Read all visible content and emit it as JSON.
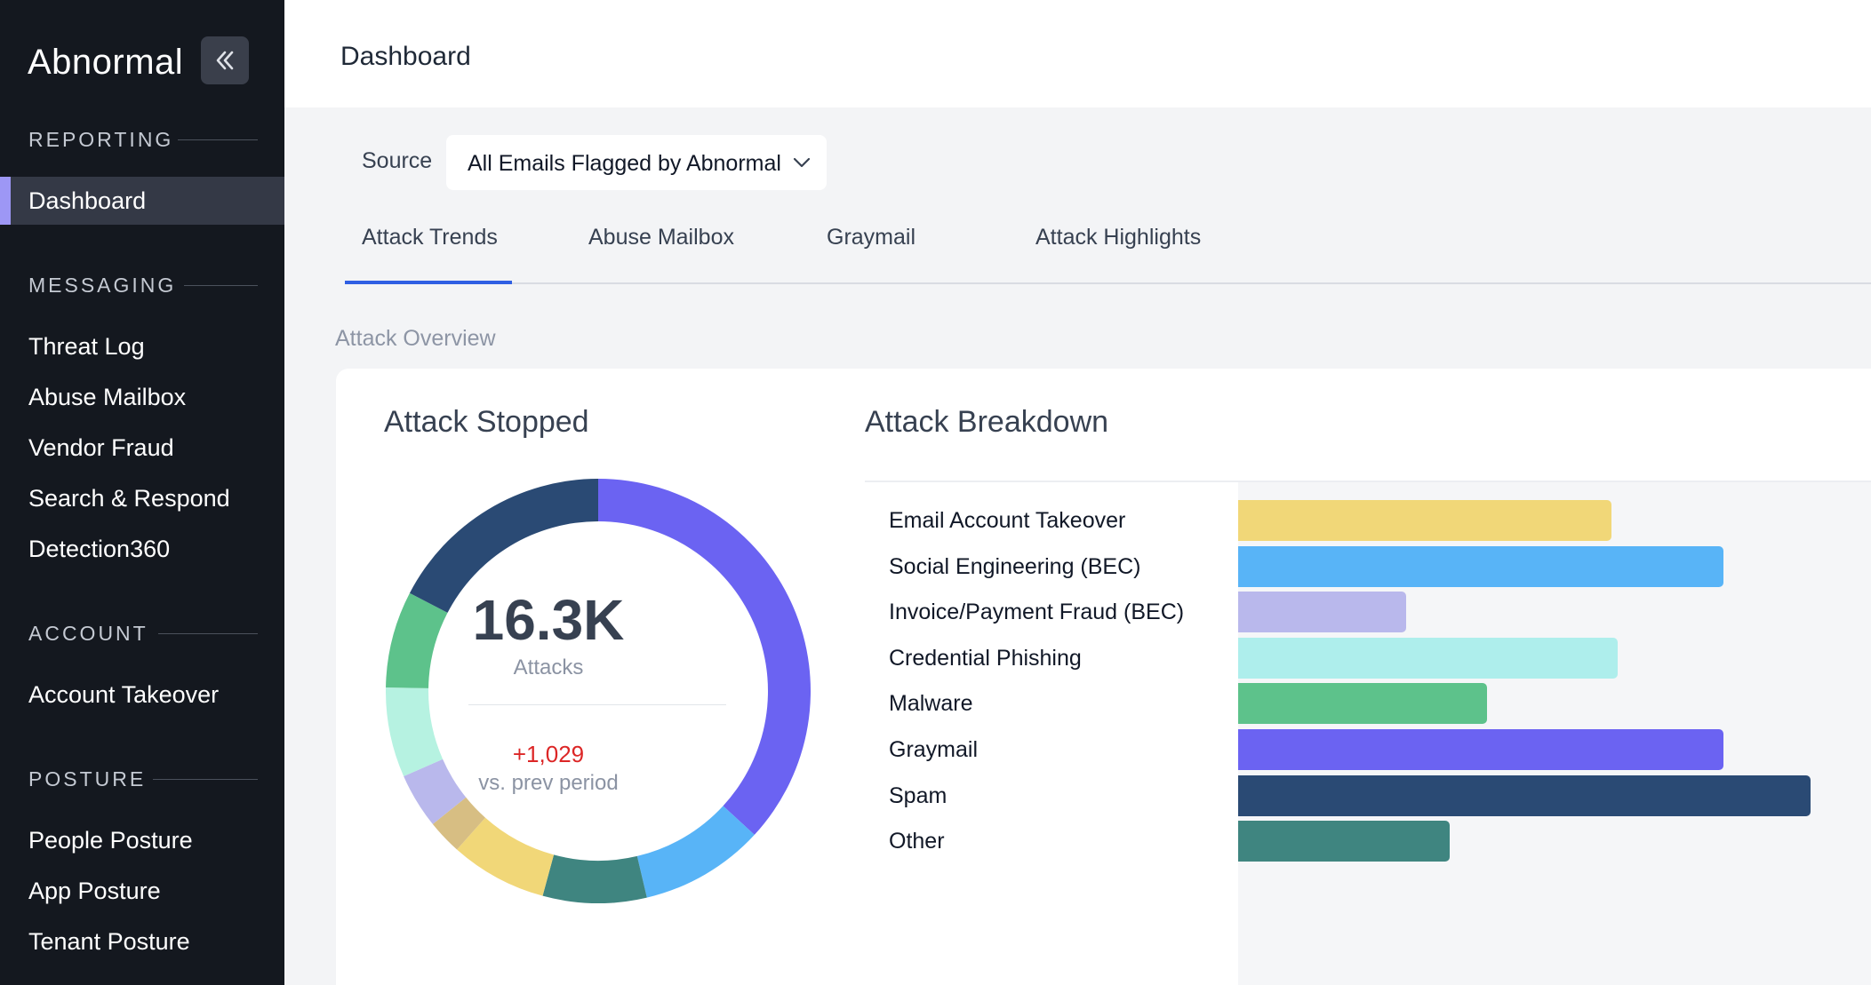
{
  "app": {
    "logo": "Abnormal",
    "page_title": "Dashboard"
  },
  "sidebar": {
    "sections": [
      {
        "heading": "REPORTING",
        "items": [
          "Dashboard"
        ]
      },
      {
        "heading": "MESSAGING",
        "items": [
          "Threat Log",
          "Abuse Mailbox",
          "Vendor Fraud",
          "Search & Respond",
          "Detection360"
        ]
      },
      {
        "heading": "ACCOUNT",
        "items": [
          "Account Takeover"
        ]
      },
      {
        "heading": "POSTURE",
        "items": [
          "People Posture",
          "App Posture",
          "Tenant Posture"
        ]
      }
    ],
    "active_item": "Dashboard",
    "collapse_icon": "double-chevron-left-icon"
  },
  "filter": {
    "label": "Source",
    "value": "All Emails Flagged by Abnormal",
    "icon": "chevron-down-icon"
  },
  "tabs": [
    {
      "label": "Attack Trends",
      "active": true
    },
    {
      "label": "Abuse Mailbox",
      "active": false
    },
    {
      "label": "Graymail",
      "active": false
    },
    {
      "label": "Attack Highlights",
      "active": false
    }
  ],
  "overview": {
    "label": "Attack Overview",
    "stopped_title": "Attack Stopped",
    "breakdown_title": "Attack Breakdown",
    "total": "16.3K",
    "total_label": "Attacks",
    "delta": "+1,029",
    "delta_label": "vs. prev period"
  },
  "colors": {
    "accent_tab": "#2f5fe3",
    "active_marker": "#9d97f5",
    "delta": "#dc2626"
  },
  "chart_data": [
    {
      "type": "pie",
      "variant": "donut",
      "title": "Attack Stopped",
      "slices": [
        {
          "color": "#6b63f2",
          "value": 35
        },
        {
          "color": "#58b4f7",
          "value": 9
        },
        {
          "color": "#3f8580",
          "value": 7.5
        },
        {
          "color": "#f1d778",
          "value": 7
        },
        {
          "color": "#d7be83",
          "value": 2.5
        },
        {
          "color": "#b9b8ec",
          "value": 4
        },
        {
          "color": "#b6f2e1",
          "value": 6.5
        },
        {
          "color": "#5dc28b",
          "value": 7
        },
        {
          "color": "#2a4a74",
          "value": 16.5
        }
      ]
    },
    {
      "type": "bar",
      "orientation": "horizontal",
      "title": "Attack Breakdown",
      "categories": [
        "Email Account Takeover",
        "Social Engineering (BEC)",
        "Invoice/Payment Fraud (BEC)",
        "Credential Phishing",
        "Malware",
        "Graymail",
        "Spam",
        "Other"
      ],
      "values": [
        60,
        78,
        27,
        61,
        40,
        78,
        92,
        34
      ],
      "colors": [
        "#f1d778",
        "#58b4f7",
        "#b9b8ec",
        "#aeeeec",
        "#5dc28b",
        "#6b63f2",
        "#2a4a74",
        "#3f8580"
      ],
      "xlim": [
        0,
        100
      ]
    }
  ]
}
